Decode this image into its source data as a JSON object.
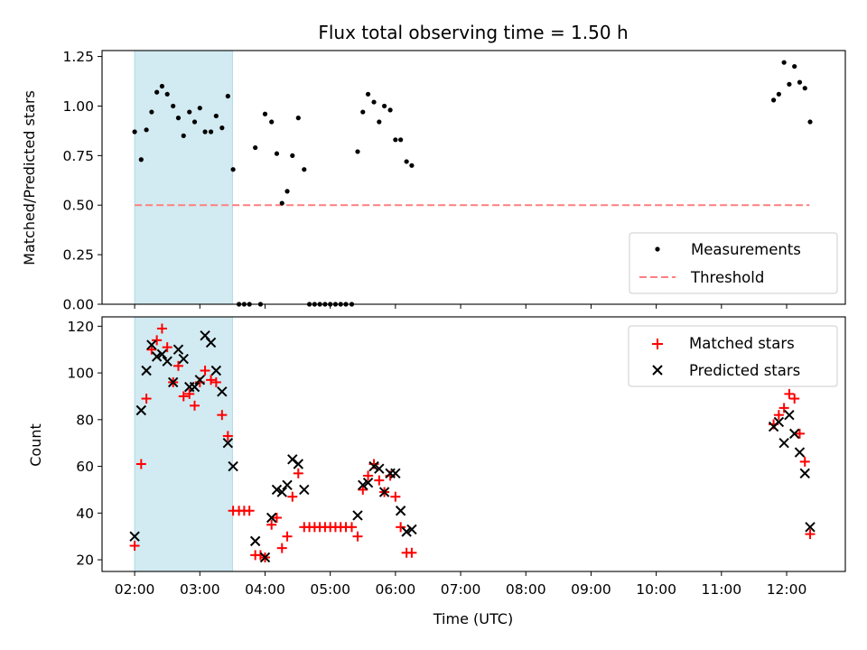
{
  "chart_data": {
    "type": "scatter",
    "title": "Flux total observing time = 1.50 h",
    "xlabel": "Time (UTC)",
    "x_ticks": [
      "02:00",
      "03:00",
      "04:00",
      "05:00",
      "06:00",
      "07:00",
      "08:00",
      "09:00",
      "10:00",
      "11:00",
      "12:00"
    ],
    "xlim_hours": [
      1.5,
      12.9
    ],
    "highlight_span_hours": [
      2.0,
      3.5
    ],
    "colors": {
      "measurement": "#000000",
      "threshold": "#ff7f7f",
      "matched": "#ff0000",
      "predicted": "#000000",
      "span": "#add8e6"
    },
    "top": {
      "ylabel": "Matched/Predicted stars",
      "ylim": [
        0,
        1.28
      ],
      "y_ticks": [
        "0.00",
        "0.25",
        "0.50",
        "0.75",
        "1.00",
        "1.25"
      ],
      "legend": [
        "Measurements",
        "Threshold"
      ],
      "threshold": 0.5,
      "threshold_range_hours": [
        2.0,
        12.35
      ],
      "measurements": [
        [
          2.0,
          0.87
        ],
        [
          2.1,
          0.73
        ],
        [
          2.18,
          0.88
        ],
        [
          2.26,
          0.97
        ],
        [
          2.34,
          1.07
        ],
        [
          2.42,
          1.1
        ],
        [
          2.5,
          1.06
        ],
        [
          2.59,
          1.0
        ],
        [
          2.67,
          0.94
        ],
        [
          2.75,
          0.85
        ],
        [
          2.84,
          0.97
        ],
        [
          2.92,
          0.92
        ],
        [
          3.0,
          0.99
        ],
        [
          3.08,
          0.87
        ],
        [
          3.17,
          0.87
        ],
        [
          3.25,
          0.95
        ],
        [
          3.34,
          0.89
        ],
        [
          3.43,
          1.05
        ],
        [
          3.51,
          0.68
        ],
        [
          3.6,
          0.0
        ],
        [
          3.68,
          0.0
        ],
        [
          3.76,
          0.0
        ],
        [
          3.85,
          0.79
        ],
        [
          3.93,
          0.0
        ],
        [
          4.0,
          0.96
        ],
        [
          4.1,
          0.92
        ],
        [
          4.18,
          0.76
        ],
        [
          4.26,
          0.51
        ],
        [
          4.34,
          0.57
        ],
        [
          4.42,
          0.75
        ],
        [
          4.51,
          0.94
        ],
        [
          4.6,
          0.68
        ],
        [
          4.68,
          0.0
        ],
        [
          4.76,
          0.0
        ],
        [
          4.84,
          0.0
        ],
        [
          4.92,
          0.0
        ],
        [
          5.0,
          0.0
        ],
        [
          5.08,
          0.0
        ],
        [
          5.16,
          0.0
        ],
        [
          5.24,
          0.0
        ],
        [
          5.33,
          0.0
        ],
        [
          5.42,
          0.77
        ],
        [
          5.5,
          0.97
        ],
        [
          5.58,
          1.06
        ],
        [
          5.67,
          1.02
        ],
        [
          5.75,
          0.92
        ],
        [
          5.83,
          1.0
        ],
        [
          5.92,
          0.98
        ],
        [
          6.0,
          0.83
        ],
        [
          6.08,
          0.83
        ],
        [
          6.17,
          0.72
        ],
        [
          6.25,
          0.7
        ],
        [
          11.8,
          1.03
        ],
        [
          11.88,
          1.06
        ],
        [
          11.96,
          1.22
        ],
        [
          12.04,
          1.11
        ],
        [
          12.12,
          1.2
        ],
        [
          12.2,
          1.12
        ],
        [
          12.28,
          1.09
        ],
        [
          12.36,
          0.92
        ]
      ]
    },
    "bottom": {
      "ylabel": "Count",
      "ylim": [
        15,
        124
      ],
      "y_ticks": [
        "20",
        "40",
        "60",
        "80",
        "100",
        "120"
      ],
      "legend": [
        "Matched stars",
        "Predicted stars"
      ],
      "matched": [
        [
          2.0,
          26
        ],
        [
          2.1,
          61
        ],
        [
          2.18,
          89
        ],
        [
          2.26,
          110
        ],
        [
          2.34,
          114
        ],
        [
          2.42,
          119
        ],
        [
          2.5,
          111
        ],
        [
          2.59,
          96
        ],
        [
          2.67,
          103
        ],
        [
          2.75,
          90
        ],
        [
          2.84,
          91
        ],
        [
          2.92,
          86
        ],
        [
          3.0,
          96
        ],
        [
          3.08,
          101
        ],
        [
          3.17,
          97
        ],
        [
          3.25,
          96
        ],
        [
          3.34,
          82
        ],
        [
          3.43,
          73
        ],
        [
          3.51,
          41
        ],
        [
          3.6,
          41
        ],
        [
          3.68,
          41
        ],
        [
          3.76,
          41
        ],
        [
          3.85,
          22
        ],
        [
          3.93,
          22
        ],
        [
          4.0,
          21
        ],
        [
          4.1,
          35
        ],
        [
          4.18,
          38
        ],
        [
          4.26,
          25
        ],
        [
          4.34,
          30
        ],
        [
          4.42,
          47
        ],
        [
          4.51,
          57
        ],
        [
          4.6,
          34
        ],
        [
          4.68,
          34
        ],
        [
          4.76,
          34
        ],
        [
          4.84,
          34
        ],
        [
          4.92,
          34
        ],
        [
          5.0,
          34
        ],
        [
          5.08,
          34
        ],
        [
          5.16,
          34
        ],
        [
          5.24,
          34
        ],
        [
          5.33,
          34
        ],
        [
          5.42,
          30
        ],
        [
          5.5,
          50
        ],
        [
          5.58,
          56
        ],
        [
          5.67,
          61
        ],
        [
          5.75,
          54
        ],
        [
          5.83,
          49
        ],
        [
          5.92,
          56
        ],
        [
          6.0,
          47
        ],
        [
          6.08,
          34
        ],
        [
          6.17,
          23
        ],
        [
          6.25,
          23
        ],
        [
          11.8,
          78
        ],
        [
          11.88,
          82
        ],
        [
          11.96,
          85
        ],
        [
          12.04,
          91
        ],
        [
          12.12,
          89
        ],
        [
          12.2,
          74
        ],
        [
          12.28,
          62
        ],
        [
          12.36,
          31
        ]
      ],
      "predicted": [
        [
          2.0,
          30
        ],
        [
          2.1,
          84
        ],
        [
          2.18,
          101
        ],
        [
          2.26,
          112
        ],
        [
          2.34,
          107
        ],
        [
          2.42,
          108
        ],
        [
          2.5,
          105
        ],
        [
          2.59,
          96
        ],
        [
          2.67,
          110
        ],
        [
          2.75,
          106
        ],
        [
          2.84,
          94
        ],
        [
          2.92,
          94
        ],
        [
          3.0,
          97
        ],
        [
          3.08,
          116
        ],
        [
          3.17,
          113
        ],
        [
          3.25,
          101
        ],
        [
          3.34,
          92
        ],
        [
          3.43,
          70
        ],
        [
          3.51,
          60
        ],
        [
          3.85,
          28
        ],
        [
          4.0,
          21
        ],
        [
          4.1,
          38
        ],
        [
          4.18,
          50
        ],
        [
          4.26,
          49
        ],
        [
          4.34,
          52
        ],
        [
          4.42,
          63
        ],
        [
          4.51,
          61
        ],
        [
          4.6,
          50
        ],
        [
          5.42,
          39
        ],
        [
          5.5,
          52
        ],
        [
          5.58,
          53
        ],
        [
          5.67,
          60
        ],
        [
          5.75,
          59
        ],
        [
          5.83,
          49
        ],
        [
          5.92,
          57
        ],
        [
          6.0,
          57
        ],
        [
          6.08,
          41
        ],
        [
          6.17,
          32
        ],
        [
          6.25,
          33
        ],
        [
          11.8,
          77
        ],
        [
          11.88,
          79
        ],
        [
          11.96,
          70
        ],
        [
          12.04,
          82
        ],
        [
          12.12,
          74
        ],
        [
          12.2,
          66
        ],
        [
          12.28,
          57
        ],
        [
          12.36,
          34
        ]
      ]
    }
  }
}
